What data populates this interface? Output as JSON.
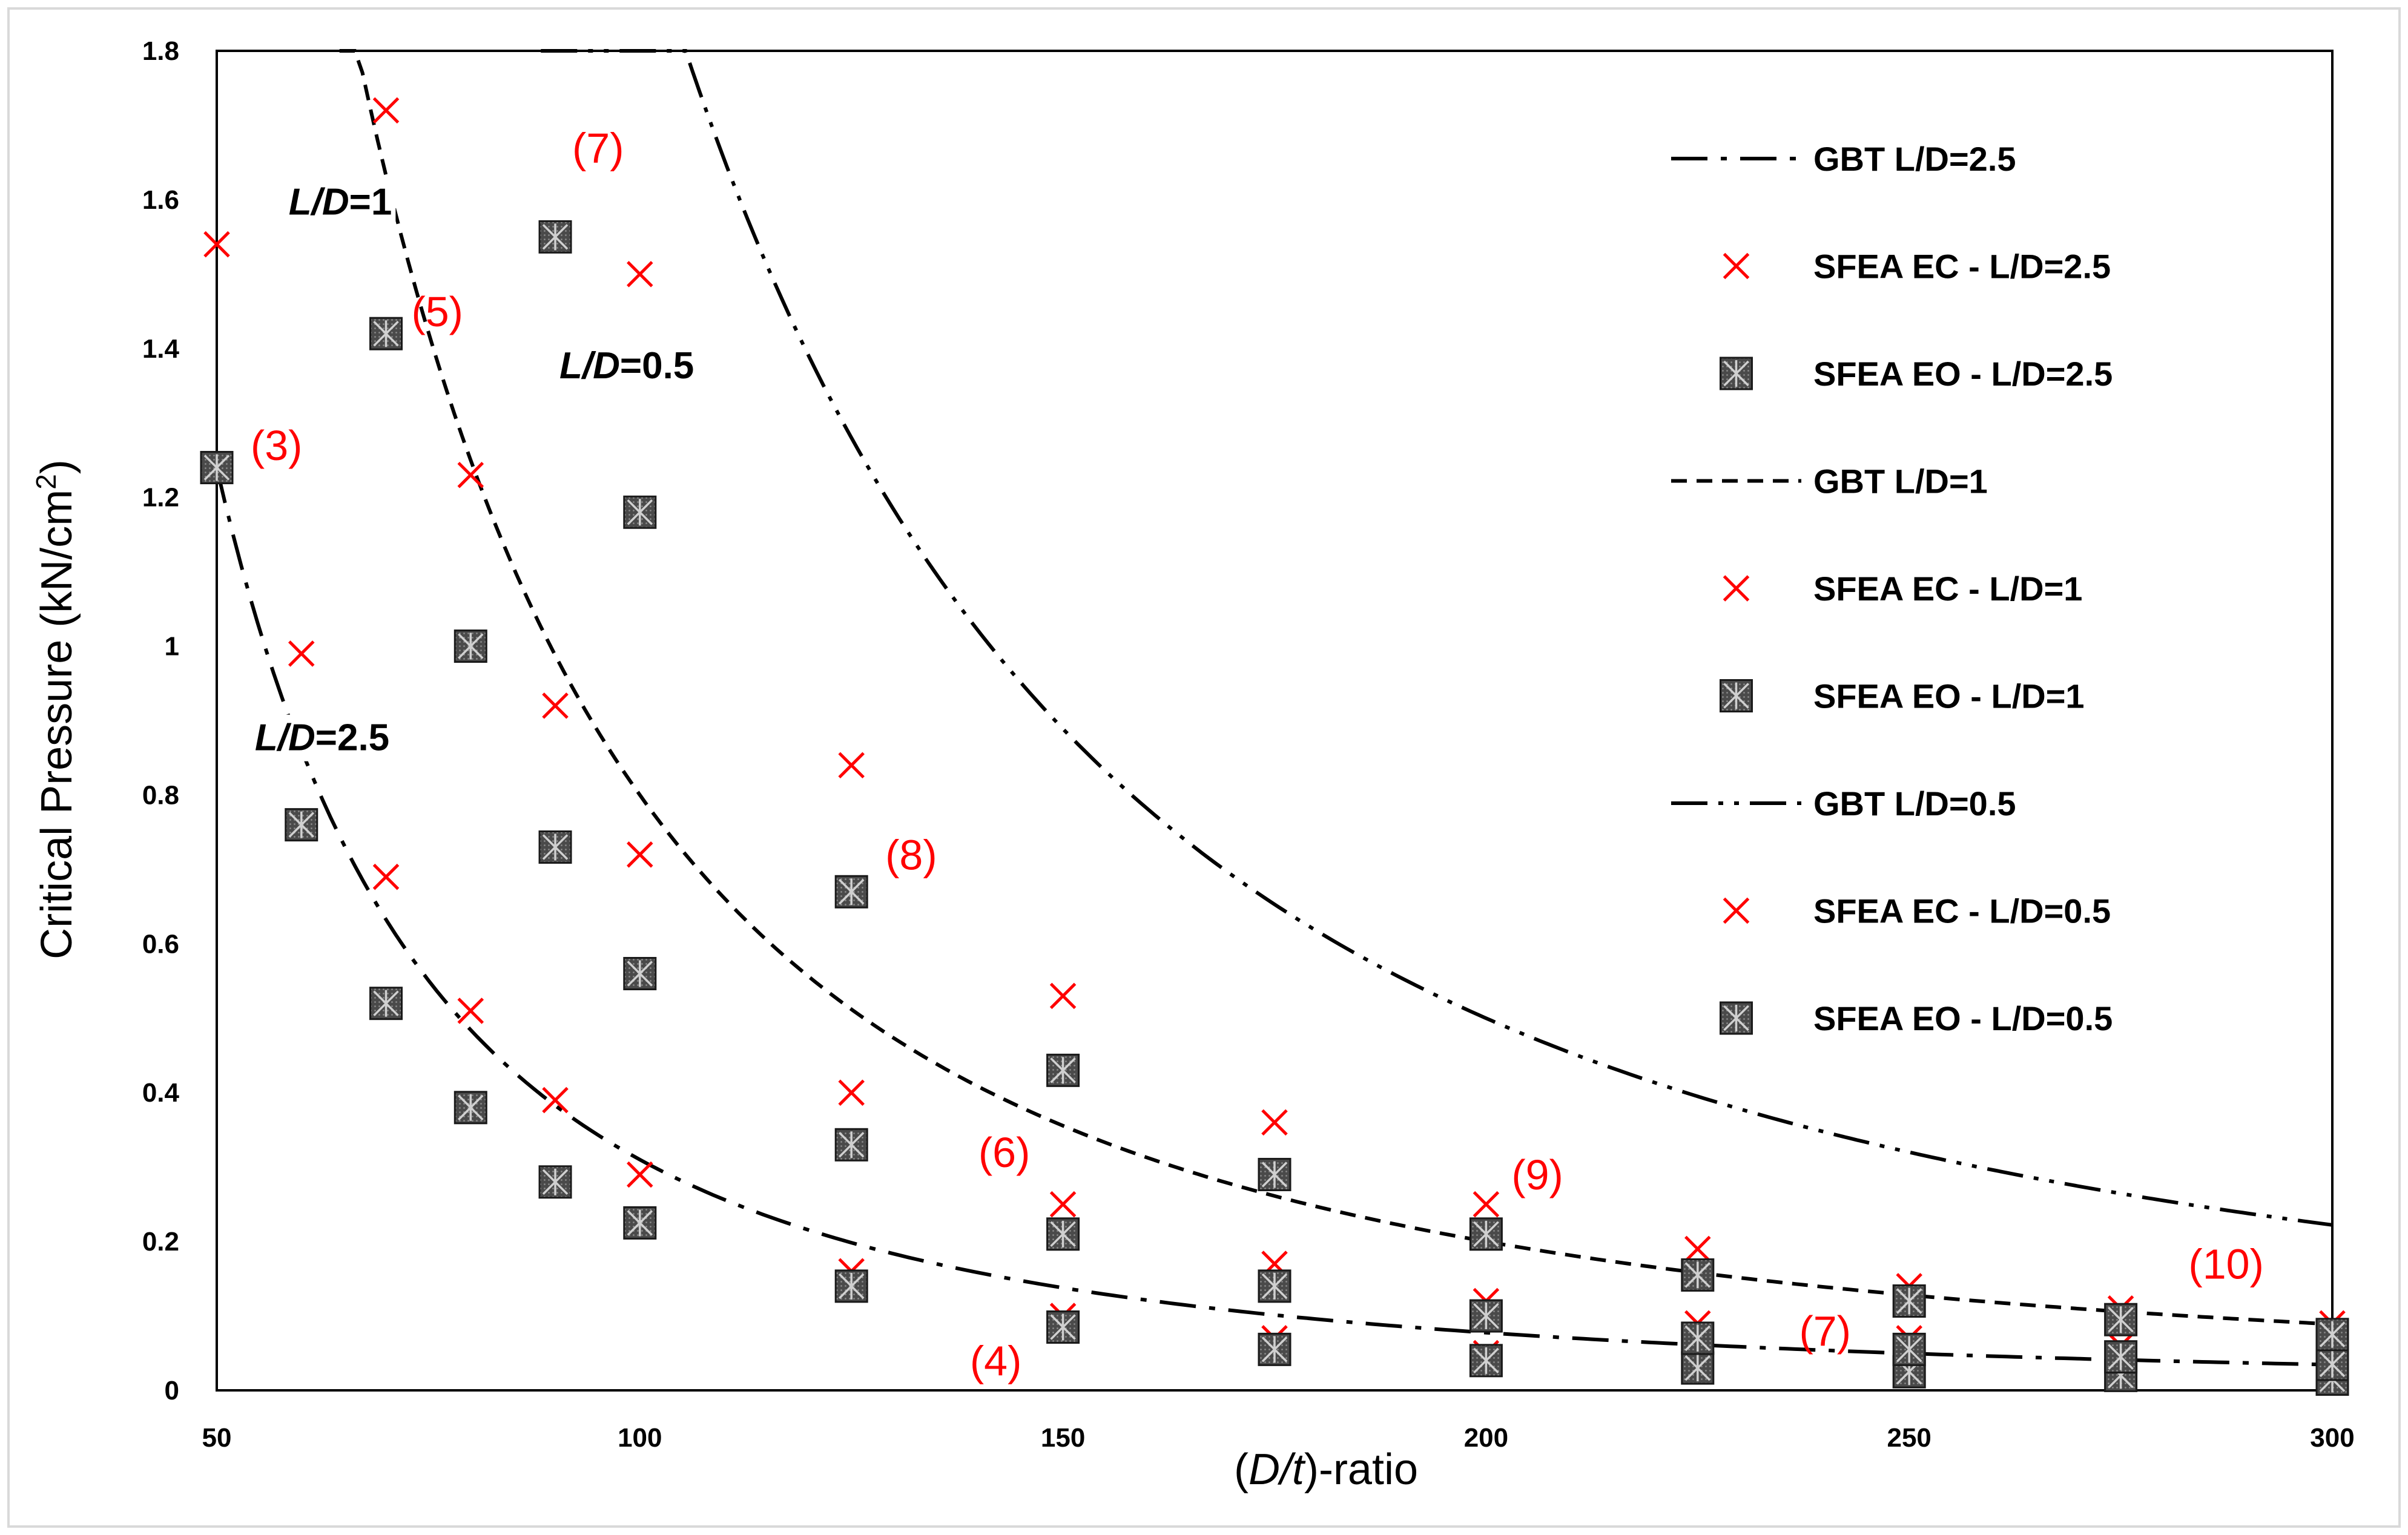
{
  "chart_data": {
    "type": "line",
    "xlabel_pre": "(",
    "xlabel_italic": "D/t",
    "xlabel_post": ")-ratio",
    "ylabel_main": "Critical Pressure (kN/cm",
    "ylabel_sup": "2",
    "ylabel_end": ")",
    "xlim": [
      50,
      300
    ],
    "ylim": [
      0,
      1.8
    ],
    "xticks": [
      50,
      100,
      150,
      200,
      250,
      300
    ],
    "yticks": [
      0,
      0.2,
      0.4,
      0.6,
      0.8,
      1,
      1.2,
      1.4,
      1.6,
      1.8
    ],
    "ytick_labels": [
      "0",
      "0.2",
      "0.4",
      "0.6",
      "0.8",
      "1",
      "1.2",
      "1.4",
      "1.6",
      "1.8"
    ],
    "colors": {
      "ec": "#ff0000",
      "eo_fill": "#4a4a4a",
      "line": "#000000",
      "annot": "#ff0000"
    },
    "series": [
      {
        "name": "GBT L/D=2.5",
        "kind": "line",
        "dash": "60,22,10,22",
        "coef": 3100,
        "xmin": 50,
        "xmax": 300
      },
      {
        "name": "SFEA EC - L/D=2.5",
        "kind": "ec",
        "x": [
          50,
          60,
          70,
          80,
          90,
          100,
          125,
          150,
          175,
          200,
          225,
          250,
          275,
          300
        ],
        "y": [
          1.54,
          0.99,
          0.69,
          0.51,
          0.39,
          0.29,
          0.16,
          0.1,
          0.07,
          0.05,
          0.04,
          0.03,
          0.02,
          0.02
        ]
      },
      {
        "name": "SFEA EO - L/D=2.5",
        "kind": "eo",
        "x": [
          50,
          60,
          70,
          80,
          90,
          100,
          125,
          150,
          175,
          200,
          225,
          250,
          275,
          300
        ],
        "y": [
          1.24,
          0.76,
          0.52,
          0.38,
          0.28,
          0.225,
          0.14,
          0.085,
          0.055,
          0.04,
          0.03,
          0.025,
          0.02,
          0.015
        ]
      },
      {
        "name": "GBT L/D=1",
        "kind": "line",
        "dash": "26,16",
        "coef": 8000,
        "xmin": 64.5,
        "xmax": 300
      },
      {
        "name": "SFEA EC - L/D=1",
        "kind": "ec",
        "x": [
          70,
          80,
          90,
          100,
          125,
          150,
          175,
          200,
          225,
          250,
          275,
          300
        ],
        "y": [
          1.72,
          1.23,
          0.92,
          0.72,
          0.4,
          0.25,
          0.17,
          0.12,
          0.09,
          0.07,
          0.06,
          0.05
        ]
      },
      {
        "name": "SFEA EO - L/D=1",
        "kind": "eo",
        "x": [
          70,
          80,
          90,
          100,
          125,
          150,
          175,
          200,
          225,
          250,
          275,
          300
        ],
        "y": [
          1.42,
          1.0,
          0.73,
          0.56,
          0.33,
          0.21,
          0.14,
          0.1,
          0.07,
          0.055,
          0.045,
          0.035
        ]
      },
      {
        "name": "GBT L/D=0.5",
        "kind": "line",
        "dash": "60,18,8,18,8,18",
        "coef": 20000,
        "xmin": 88.3,
        "xmax": 300
      },
      {
        "name": "SFEA EC - L/D=0.5",
        "kind": "ec",
        "x": [
          100,
          125,
          150,
          175,
          200,
          225,
          250,
          275,
          300
        ],
        "y": [
          1.5,
          0.84,
          0.53,
          0.36,
          0.25,
          0.19,
          0.14,
          0.11,
          0.09
        ]
      },
      {
        "name": "SFEA EO - L/D=0.5",
        "kind": "eo",
        "x": [
          90,
          100,
          125,
          150,
          175,
          200,
          225,
          250,
          275,
          300
        ],
        "y": [
          1.55,
          1.18,
          0.67,
          0.43,
          0.29,
          0.21,
          0.155,
          0.12,
          0.095,
          0.075
        ]
      }
    ],
    "curve_labels": [
      {
        "id": "ld1",
        "italic": "L/D",
        "text": "=1",
        "x": 58.5,
        "y": 1.58
      },
      {
        "id": "ld05",
        "italic": "L/D",
        "text": "=0.5",
        "x": 90.5,
        "y": 1.36
      },
      {
        "id": "ld25",
        "italic": "L/D",
        "text": "=2.5",
        "x": 54.5,
        "y": 0.86
      }
    ],
    "annotations": [
      {
        "text": "(3)",
        "x": 54,
        "y": 1.25
      },
      {
        "text": "(5)",
        "x": 73,
        "y": 1.43
      },
      {
        "text": "(7)",
        "x": 92,
        "y": 1.65
      },
      {
        "text": "(8)",
        "x": 129,
        "y": 0.7
      },
      {
        "text": "(6)",
        "x": 140,
        "y": 0.3
      },
      {
        "text": "(4)",
        "x": 139,
        "y": 0.02
      },
      {
        "text": "(9)",
        "x": 203,
        "y": 0.27
      },
      {
        "text": "(7)",
        "x": 237,
        "y": 0.06
      },
      {
        "text": "(10)",
        "x": 283,
        "y": 0.15
      }
    ]
  }
}
